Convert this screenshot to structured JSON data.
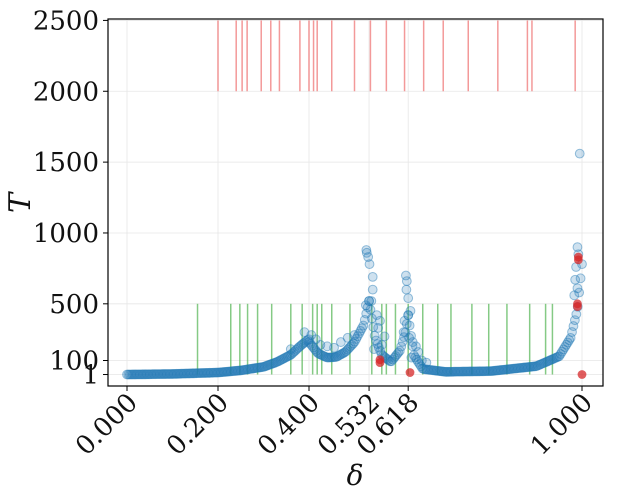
{
  "chart_data": {
    "type": "scatter",
    "title": "",
    "xlabel": "δ",
    "ylabel": "T",
    "xlim": [
      -0.05,
      1.05
    ],
    "ylim": [
      -80,
      2510
    ],
    "x_ticks": [
      0.0,
      0.2,
      0.4,
      0.532,
      0.618,
      1.0
    ],
    "x_tick_labels": [
      "0.000",
      "0.200",
      "0.400",
      "0.532",
      "0.618",
      "1.000"
    ],
    "y_ticks": [
      1,
      100,
      500,
      1000,
      1500,
      2000,
      2500
    ],
    "y_tick_labels": [
      "1",
      "100",
      "500",
      "1000",
      "1500",
      "2000",
      "2500"
    ],
    "grid": true,
    "colors": {
      "scatter": "#1f77b4",
      "red": "#d62728",
      "red_lines": "#f08080",
      "green_lines": "#5cb85c"
    },
    "red_lines": {
      "y_from": 2000,
      "y_to": 2500,
      "x": [
        0.2,
        0.24,
        0.253,
        0.264,
        0.295,
        0.316,
        0.335,
        0.38,
        0.4,
        0.41,
        0.418,
        0.45,
        0.5,
        0.535,
        0.57,
        0.61,
        0.652,
        0.695,
        0.75,
        0.815,
        0.88,
        0.89,
        0.985
      ]
    },
    "green_lines": {
      "y_from": 1,
      "y_to": 500,
      "x": [
        0.155,
        0.228,
        0.248,
        0.265,
        0.287,
        0.318,
        0.36,
        0.385,
        0.408,
        0.418,
        0.428,
        0.45,
        0.49,
        0.538,
        0.56,
        0.57,
        0.59,
        0.618,
        0.65,
        0.683,
        0.712,
        0.758,
        0.795,
        0.835,
        0.885,
        0.92,
        0.935
      ]
    },
    "curve_segments": [
      {
        "x": [
          0.0,
          0.1,
          0.2,
          0.25,
          0.3,
          0.33,
          0.36,
          0.38,
          0.395,
          0.4
        ],
        "y": [
          1,
          5,
          15,
          30,
          55,
          90,
          140,
          200,
          240,
          250
        ]
      },
      {
        "x": [
          0.4,
          0.42,
          0.44,
          0.46,
          0.48,
          0.5,
          0.52,
          0.532
        ],
        "y": [
          230,
          150,
          120,
          125,
          160,
          230,
          350,
          520
        ]
      },
      {
        "x": [
          0.532,
          0.545,
          0.56,
          0.58,
          0.6,
          0.612,
          0.618
        ],
        "y": [
          520,
          260,
          140,
          90,
          170,
          300,
          420
        ]
      },
      {
        "x": [
          0.618,
          0.63,
          0.65,
          0.7,
          0.8,
          0.9,
          0.95,
          0.975,
          0.99,
          1.0
        ],
        "y": [
          420,
          140,
          40,
          20,
          25,
          60,
          130,
          260,
          460,
          780
        ]
      }
    ],
    "outliers": [
      {
        "x": 0.526,
        "y": 880
      },
      {
        "x": 0.527,
        "y": 860
      },
      {
        "x": 0.53,
        "y": 830
      },
      {
        "x": 0.533,
        "y": 780
      },
      {
        "x": 0.54,
        "y": 690
      },
      {
        "x": 0.54,
        "y": 600
      },
      {
        "x": 0.537,
        "y": 520
      },
      {
        "x": 0.525,
        "y": 490
      },
      {
        "x": 0.549,
        "y": 420
      },
      {
        "x": 0.556,
        "y": 380
      },
      {
        "x": 0.552,
        "y": 330
      },
      {
        "x": 0.566,
        "y": 270
      },
      {
        "x": 0.56,
        "y": 210
      },
      {
        "x": 0.543,
        "y": 180
      },
      {
        "x": 0.613,
        "y": 700
      },
      {
        "x": 0.615,
        "y": 660
      },
      {
        "x": 0.614,
        "y": 600
      },
      {
        "x": 0.618,
        "y": 540
      },
      {
        "x": 0.623,
        "y": 450
      },
      {
        "x": 0.61,
        "y": 380
      },
      {
        "x": 0.608,
        "y": 300
      },
      {
        "x": 0.62,
        "y": 260
      },
      {
        "x": 0.628,
        "y": 230
      },
      {
        "x": 0.635,
        "y": 200
      },
      {
        "x": 0.64,
        "y": 160
      },
      {
        "x": 0.625,
        "y": 120
      },
      {
        "x": 0.648,
        "y": 100
      },
      {
        "x": 0.658,
        "y": 85
      },
      {
        "x": 0.39,
        "y": 300
      },
      {
        "x": 0.405,
        "y": 280
      },
      {
        "x": 0.415,
        "y": 250
      },
      {
        "x": 0.425,
        "y": 210
      },
      {
        "x": 0.44,
        "y": 200
      },
      {
        "x": 0.455,
        "y": 190
      },
      {
        "x": 0.47,
        "y": 230
      },
      {
        "x": 0.485,
        "y": 260
      },
      {
        "x": 0.5,
        "y": 280
      },
      {
        "x": 0.36,
        "y": 180
      },
      {
        "x": 0.995,
        "y": 1560
      },
      {
        "x": 0.99,
        "y": 900
      },
      {
        "x": 0.992,
        "y": 850
      },
      {
        "x": 0.987,
        "y": 760
      },
      {
        "x": 0.985,
        "y": 670
      },
      {
        "x": 0.99,
        "y": 610
      },
      {
        "x": 0.983,
        "y": 560
      }
    ],
    "red_points": [
      {
        "x": 0.556,
        "y": 105
      },
      {
        "x": 0.556,
        "y": 85
      },
      {
        "x": 0.622,
        "y": 15
      },
      {
        "x": 0.992,
        "y": 830
      },
      {
        "x": 0.992,
        "y": 810
      },
      {
        "x": 0.99,
        "y": 500
      },
      {
        "x": 0.99,
        "y": 480
      },
      {
        "x": 1.0,
        "y": 1
      }
    ]
  }
}
